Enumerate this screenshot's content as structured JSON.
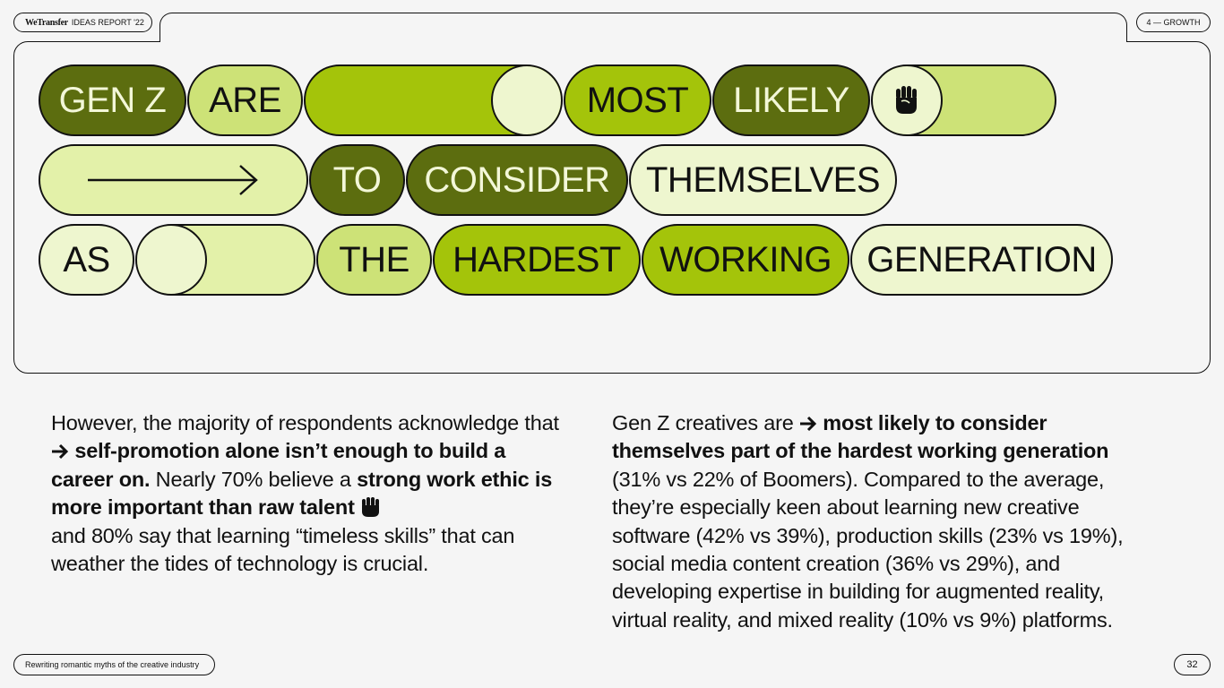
{
  "header": {
    "brand": "WeTransfer",
    "report": "IDEAS REPORT '22",
    "section": "4 — GROWTH"
  },
  "headline": {
    "words": [
      "GEN Z",
      "ARE",
      "MOST",
      "LIKELY",
      "TO",
      "CONSIDER",
      "THEMSELVES",
      "AS",
      "THE",
      "HARDEST",
      "WORKING",
      "GENERATION"
    ]
  },
  "left_text": {
    "p1": "However, the majority of respondents acknowledge that",
    "p2_bold": "self-promotion alone isn’t enough to build a career on.",
    "p3": " Nearly 70% believe a ",
    "p4_bold": "strong work ethic is more important than raw talent",
    "p5": "and 80% say that learning “timeless skills” that can weather the tides of technology is crucial."
  },
  "right_text": {
    "p1": "Gen Z creatives are",
    "p2_bold": "most likely to consider themselves part of the hardest working generation",
    "p3": "(31% vs 22% of Boomers). Compared to the average, they’re especially keen about learning new creative software (42% vs 39%), production skills (23% vs 19%), social media content creation (36% vs 29%), and developing expertise in building for augmented reality, virtual reality, and mixed reality (10% vs 9%) platforms."
  },
  "footer": {
    "title": "Rewriting romantic myths of the creative industry",
    "page": "32"
  },
  "icons": [
    "fist-icon",
    "arrow-right-icon"
  ],
  "colors": {
    "dark_green": "#5c6d0f",
    "lime": "#a4c40a",
    "light_lime": "#cde277",
    "pale": "#eef6cf"
  }
}
